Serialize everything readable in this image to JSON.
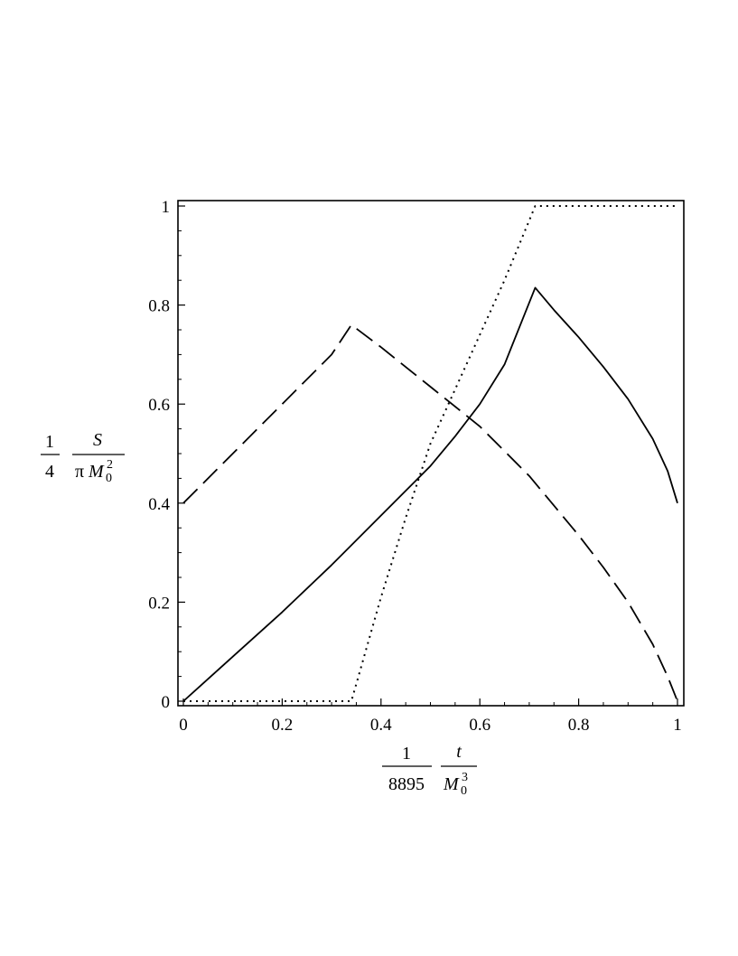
{
  "chart_data": {
    "type": "line",
    "xlim": [
      0,
      1
    ],
    "ylim": [
      0,
      1
    ],
    "x_ticks": [
      "0",
      "0.2",
      "0.4",
      "0.6",
      "0.8",
      "1"
    ],
    "y_ticks": [
      "0",
      "0.2",
      "0.4",
      "0.6",
      "0.8",
      "1"
    ],
    "xlabel": {
      "coef_num": "1",
      "coef_den": "8895",
      "num": "t",
      "den_base": "M",
      "den_sub": "0",
      "den_sup": "3"
    },
    "ylabel": {
      "coef_num": "1",
      "coef_den": "4",
      "num": "S",
      "den_pi": "π",
      "den_base": "M",
      "den_sub": "0",
      "den_sup": "2"
    },
    "grid": false,
    "legend": "none",
    "series": [
      {
        "style": "solid",
        "color": "#000000",
        "points": [
          [
            0,
            0
          ],
          [
            0.1,
            0.09
          ],
          [
            0.2,
            0.18
          ],
          [
            0.3,
            0.275
          ],
          [
            0.4,
            0.375
          ],
          [
            0.5,
            0.475
          ],
          [
            0.55,
            0.535
          ],
          [
            0.6,
            0.6
          ],
          [
            0.65,
            0.68
          ],
          [
            0.712,
            0.835
          ],
          [
            0.75,
            0.79
          ],
          [
            0.8,
            0.735
          ],
          [
            0.85,
            0.675
          ],
          [
            0.9,
            0.61
          ],
          [
            0.95,
            0.53
          ],
          [
            0.98,
            0.465
          ],
          [
            1.0,
            0.4
          ]
        ]
      },
      {
        "style": "dashed",
        "color": "#000000",
        "points": [
          [
            0,
            0.4
          ],
          [
            0.1,
            0.5
          ],
          [
            0.2,
            0.6
          ],
          [
            0.3,
            0.7
          ],
          [
            0.34,
            0.76
          ],
          [
            0.4,
            0.715
          ],
          [
            0.5,
            0.635
          ],
          [
            0.6,
            0.555
          ],
          [
            0.7,
            0.455
          ],
          [
            0.8,
            0.335
          ],
          [
            0.85,
            0.27
          ],
          [
            0.9,
            0.2
          ],
          [
            0.95,
            0.115
          ],
          [
            0.98,
            0.05
          ],
          [
            1.0,
            0.0
          ]
        ]
      },
      {
        "style": "dotted",
        "color": "#000000",
        "points": [
          [
            0,
            0
          ],
          [
            0.34,
            0
          ],
          [
            0.4,
            0.21
          ],
          [
            0.45,
            0.37
          ],
          [
            0.5,
            0.52
          ],
          [
            0.55,
            0.63
          ],
          [
            0.6,
            0.74
          ],
          [
            0.65,
            0.85
          ],
          [
            0.712,
            1.0
          ],
          [
            1.0,
            1.0
          ]
        ]
      }
    ]
  }
}
